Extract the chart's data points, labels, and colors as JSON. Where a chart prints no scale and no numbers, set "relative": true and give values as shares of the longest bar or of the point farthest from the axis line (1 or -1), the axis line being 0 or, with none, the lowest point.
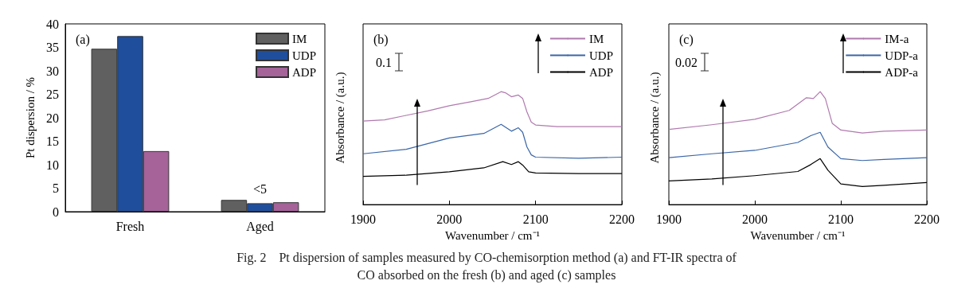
{
  "chart_data": [
    {
      "type": "bar",
      "title": "(a)",
      "ylabel": "Pt dispersion / %",
      "categories": [
        "Fresh",
        "Aged"
      ],
      "ylim": [
        0,
        40
      ],
      "yticks": [
        0,
        5,
        10,
        15,
        20,
        25,
        30,
        35,
        40
      ],
      "legend": "top right",
      "series": [
        {
          "name": "IM",
          "color": "#606060",
          "values": [
            34.7,
            2.5
          ]
        },
        {
          "name": "UDP",
          "color": "#1f4e9c",
          "values": [
            37.4,
            1.8
          ]
        },
        {
          "name": "ADP",
          "color": "#a56399",
          "values": [
            12.9,
            2.0
          ]
        }
      ],
      "annotations": [
        "<5",
        "Fig. 2    Pt dispersion of samples measured by CO-chemisorption method (a) and FT-IR spectra of CO absorbed on the fresh (b) and aged (c) samples"
      ]
    },
    {
      "type": "line",
      "title": "(b)",
      "xlabel": "Wavenumber / cm⁻¹",
      "ylabel": "Absorbance / (a.u.)",
      "relative": true,
      "xlim": [
        1900,
        2200
      ],
      "xticks": [
        1900,
        2000,
        2100,
        2200
      ],
      "legend": "top right",
      "marker": "none",
      "line_style": "solid",
      "series": [
        {
          "name": "IM",
          "color": "#b07aae",
          "x": [
            1900,
            1925,
            1950,
            1975,
            2000,
            2025,
            2045,
            2060,
            2065,
            2072,
            2080,
            2085,
            2090,
            2095,
            2100,
            2125,
            2150,
            2200
          ],
          "values": [
            0.74,
            0.75,
            0.79,
            0.83,
            0.875,
            0.91,
            0.94,
            1.0,
            0.99,
            0.955,
            0.97,
            0.94,
            0.82,
            0.73,
            0.705,
            0.69,
            0.69,
            0.69
          ]
        },
        {
          "name": "UDP",
          "color": "#3a66a8",
          "x": [
            1900,
            1950,
            2000,
            2040,
            2060,
            2072,
            2080,
            2085,
            2090,
            2095,
            2100,
            2150,
            2200
          ],
          "values": [
            0.45,
            0.49,
            0.59,
            0.63,
            0.71,
            0.65,
            0.68,
            0.64,
            0.51,
            0.44,
            0.42,
            0.41,
            0.42
          ]
        },
        {
          "name": "ADP",
          "color": "#000000",
          "x": [
            1900,
            1950,
            2000,
            2040,
            2062,
            2072,
            2080,
            2085,
            2092,
            2100,
            2150,
            2200
          ],
          "values": [
            0.25,
            0.26,
            0.29,
            0.325,
            0.38,
            0.355,
            0.38,
            0.35,
            0.29,
            0.28,
            0.275,
            0.275
          ]
        }
      ],
      "annotations": [
        "0.1"
      ]
    },
    {
      "type": "line",
      "title": "(c)",
      "xlabel": "Wavenumber / cm⁻¹",
      "ylabel": "Absorbance / (a.u.)",
      "relative": true,
      "xlim": [
        1900,
        2200
      ],
      "xticks": [
        1900,
        2000,
        2100,
        2200
      ],
      "legend": "top right",
      "marker": "none",
      "line_style": "solid",
      "series": [
        {
          "name": "IM-a",
          "color": "#b07aae",
          "x": [
            1900,
            1950,
            2000,
            2040,
            2060,
            2068,
            2076,
            2082,
            2090,
            2100,
            2125,
            2150,
            2200
          ],
          "values": [
            0.666,
            0.707,
            0.756,
            0.834,
            0.946,
            0.939,
            1.0,
            0.939,
            0.72,
            0.66,
            0.634,
            0.65,
            0.66
          ]
        },
        {
          "name": "UDP-a",
          "color": "#3a66a8",
          "x": [
            1900,
            1950,
            2000,
            2050,
            2065,
            2076,
            2085,
            2100,
            2125,
            2150,
            2200
          ],
          "values": [
            0.415,
            0.45,
            0.48,
            0.55,
            0.61,
            0.64,
            0.51,
            0.407,
            0.39,
            0.4,
            0.415
          ]
        },
        {
          "name": "ADP-a",
          "color": "#000000",
          "x": [
            1900,
            1950,
            2000,
            2050,
            2065,
            2076,
            2085,
            2100,
            2125,
            2150,
            2200
          ],
          "values": [
            0.21,
            0.227,
            0.256,
            0.293,
            0.354,
            0.407,
            0.305,
            0.183,
            0.16,
            0.17,
            0.195
          ]
        }
      ],
      "annotations": [
        "0.02"
      ]
    }
  ]
}
